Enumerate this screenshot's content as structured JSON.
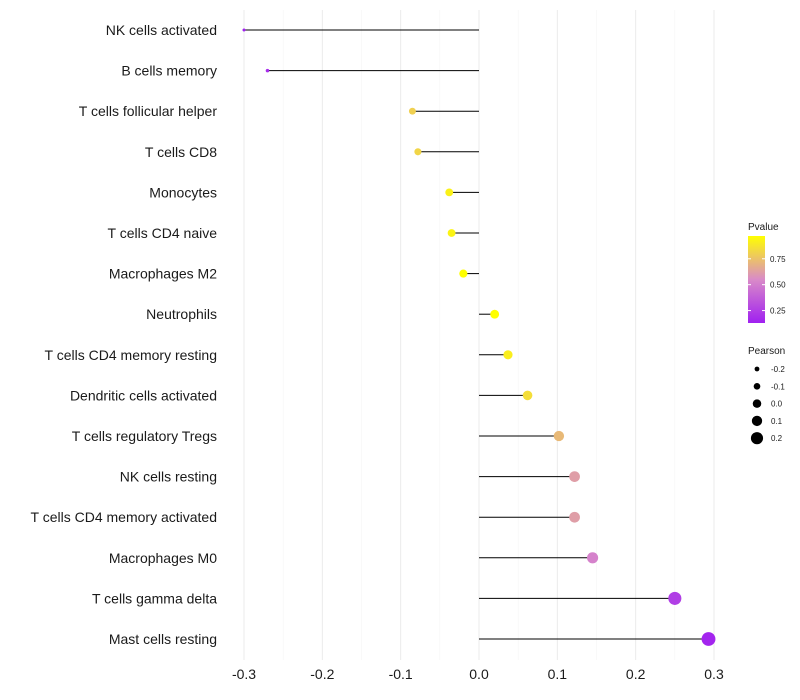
{
  "chart_data": {
    "type": "lollipop",
    "title": "",
    "xlabel": "",
    "ylabel": "",
    "xlim": [
      -0.31,
      0.31
    ],
    "x_ticks": [
      -0.3,
      -0.2,
      -0.1,
      0.0,
      0.1,
      0.2,
      0.3
    ],
    "x_tick_labels": [
      "-0.3",
      "-0.2",
      "-0.1",
      "0.0",
      "0.1",
      "0.2",
      "0.3"
    ],
    "grid": true,
    "categories": [
      "NK cells activated",
      "B cells memory",
      "T cells follicular helper",
      "T cells CD8",
      "Monocytes",
      "T cells CD4 naive",
      "Macrophages M2",
      "Neutrophils",
      "T cells CD4 memory resting",
      "Dendritic cells activated",
      "T cells regulatory  Tregs",
      "NK cells resting",
      "T cells CD4 memory activated",
      "Macrophages M0",
      "T cells gamma delta",
      "Mast cells resting"
    ],
    "pearson": [
      -0.3,
      -0.27,
      -0.085,
      -0.078,
      -0.038,
      -0.035,
      -0.02,
      0.02,
      0.037,
      0.062,
      0.102,
      0.122,
      0.122,
      0.145,
      0.25,
      0.293
    ],
    "pvalue": [
      0.13,
      0.18,
      0.8,
      0.82,
      0.92,
      0.93,
      0.97,
      0.97,
      0.91,
      0.85,
      0.72,
      0.62,
      0.62,
      0.52,
      0.25,
      0.15
    ],
    "color_legend": {
      "title": "Pvalue",
      "ticks": [
        0.75,
        0.5,
        0.25
      ],
      "tick_labels": [
        "0.75",
        "0.50",
        "0.25"
      ],
      "low_color": "#a020f0",
      "mid_color": "#e07fc0",
      "high_color": "#ffff00",
      "range": [
        0.13,
        0.97
      ]
    },
    "size_legend": {
      "title": "Pearson",
      "values": [
        -0.2,
        -0.1,
        0.0,
        0.1,
        0.2
      ],
      "labels": [
        "-0.2",
        "-0.1",
        "0.0",
        "0.1",
        "0.2"
      ]
    },
    "legend_position": "right"
  }
}
